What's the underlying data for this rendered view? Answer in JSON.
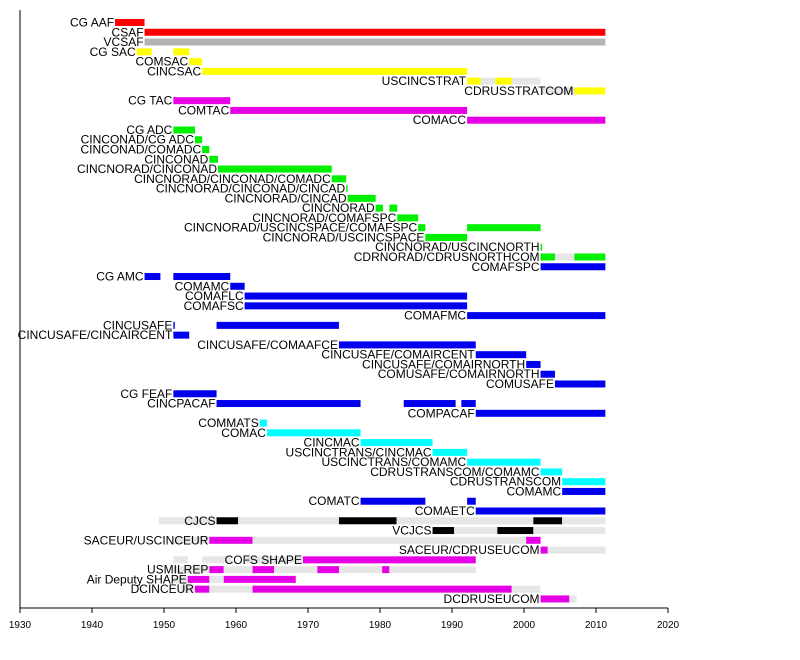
{
  "chart_data": {
    "type": "timeline",
    "title": "",
    "xlabel": "",
    "ylabel": "",
    "xlim": [
      1930,
      2020
    ],
    "x_ticks": [
      "1930",
      "1940",
      "1950",
      "1960",
      "1970",
      "1980",
      "1990",
      "2000",
      "2010",
      "2020"
    ],
    "colors": {
      "red": "#ff0000",
      "gray": "#b4b4b4",
      "yellow": "#ffff00",
      "magenta": "#e600e6",
      "green": "#00f000",
      "blue": "#0000ee",
      "cyan": "#00ffff",
      "black": "#000000",
      "light": "#e6e6e6"
    },
    "rows": [
      {
        "label": "CG AAF",
        "segments": [
          {
            "start": 1943.2,
            "end": 1947.3,
            "color": "red"
          }
        ]
      },
      {
        "label": "CSAF",
        "segments": [
          {
            "start": 1947.3,
            "end": 2011.3,
            "color": "red"
          }
        ]
      },
      {
        "label": "VCSAF",
        "segments": [
          {
            "start": 1947.3,
            "end": 2011.3,
            "color": "gray"
          }
        ]
      },
      {
        "label": "CG SAC",
        "segments": [
          {
            "start": 1946.2,
            "end": 1948.3,
            "color": "yellow"
          },
          {
            "start": 1951.3,
            "end": 1953.5,
            "color": "yellow"
          }
        ]
      },
      {
        "label": "COMSAC",
        "segments": [
          {
            "start": 1953.5,
            "end": 1955.3,
            "color": "yellow"
          }
        ]
      },
      {
        "label": "CINCSAC",
        "segments": [
          {
            "start": 1955.3,
            "end": 1992.1,
            "color": "yellow"
          }
        ]
      },
      {
        "label": "USCINCSTRAT",
        "segments": [
          {
            "start": 1992.1,
            "end": 1994.0,
            "color": "yellow"
          },
          {
            "start": 1994.0,
            "end": 1996.0,
            "color": "light"
          },
          {
            "start": 1996.0,
            "end": 1998.3,
            "color": "yellow"
          },
          {
            "start": 1998.3,
            "end": 2002.3,
            "color": "light"
          }
        ]
      },
      {
        "label": "CDRUSSTRATCOM",
        "segments": [
          {
            "start": 2002.3,
            "end": 2007.0,
            "color": "light"
          },
          {
            "start": 2007.0,
            "end": 2011.3,
            "color": "yellow"
          }
        ]
      },
      {
        "label": "CG TAC",
        "segments": [
          {
            "start": 1951.3,
            "end": 1959.2,
            "color": "magenta"
          }
        ]
      },
      {
        "label": "COMTAC",
        "segments": [
          {
            "start": 1959.2,
            "end": 1992.1,
            "color": "magenta"
          }
        ]
      },
      {
        "label": "COMACC",
        "segments": [
          {
            "start": 1992.1,
            "end": 2011.3,
            "color": "magenta"
          }
        ]
      },
      {
        "label": "CG ADC",
        "segments": [
          {
            "start": 1951.3,
            "end": 1954.3,
            "color": "green"
          }
        ]
      },
      {
        "label": "CINCONAD/CG ADC",
        "segments": [
          {
            "start": 1954.3,
            "end": 1955.3,
            "color": "green"
          }
        ]
      },
      {
        "label": "CINCONAD/COMADC",
        "segments": [
          {
            "start": 1955.3,
            "end": 1956.3,
            "color": "green"
          }
        ]
      },
      {
        "label": "CINCONAD",
        "segments": [
          {
            "start": 1956.3,
            "end": 1957.5,
            "color": "green"
          }
        ]
      },
      {
        "label": "CINCNORAD/CINCONAD",
        "segments": [
          {
            "start": 1957.5,
            "end": 1973.3,
            "color": "green"
          }
        ]
      },
      {
        "label": "CINCNORAD/CINCONAD/COMADC",
        "segments": [
          {
            "start": 1973.3,
            "end": 1975.3,
            "color": "green"
          }
        ]
      },
      {
        "label": "CINCNORAD/CINCONAD/CINCAD",
        "segments": [
          {
            "start": 1975.3,
            "end": 1975.5,
            "color": "green"
          }
        ]
      },
      {
        "label": "CINCNORAD/CINCAD",
        "segments": [
          {
            "start": 1975.5,
            "end": 1979.4,
            "color": "green"
          }
        ]
      },
      {
        "label": "CINCNORAD",
        "segments": [
          {
            "start": 1979.4,
            "end": 1980.4,
            "color": "green"
          },
          {
            "start": 1981.3,
            "end": 1982.4,
            "color": "green"
          }
        ]
      },
      {
        "label": "CINCNORAD/COMAFSPC",
        "segments": [
          {
            "start": 1982.4,
            "end": 1985.3,
            "color": "green"
          }
        ]
      },
      {
        "label": "CINCNORAD/USCINCSPACE/COMAFSPC",
        "segments": [
          {
            "start": 1985.3,
            "end": 1986.3,
            "color": "green"
          },
          {
            "start": 1992.1,
            "end": 2002.3,
            "color": "green"
          }
        ]
      },
      {
        "label": "CINCNORAD/USCINCSPACE",
        "segments": [
          {
            "start": 1986.3,
            "end": 1992.1,
            "color": "green"
          }
        ]
      },
      {
        "label": "CINCNORAD/USCINCNORTH",
        "segments": [
          {
            "start": 2002.3,
            "end": 2002.5,
            "color": "green"
          }
        ]
      },
      {
        "label": "CDRNORAD/CDRUSNORTHCOM",
        "segments": [
          {
            "start": 2002.3,
            "end": 2004.3,
            "color": "green"
          },
          {
            "start": 2004.3,
            "end": 2007.0,
            "color": "light"
          },
          {
            "start": 2007.0,
            "end": 2011.3,
            "color": "green"
          }
        ]
      },
      {
        "label": "COMAFSPC",
        "segments": [
          {
            "start": 2002.3,
            "end": 2011.3,
            "color": "blue"
          }
        ]
      },
      {
        "label": "CG AMC",
        "segments": [
          {
            "start": 1947.3,
            "end": 1949.5,
            "color": "blue"
          },
          {
            "start": 1951.3,
            "end": 1959.2,
            "color": "blue"
          }
        ]
      },
      {
        "label": "COMAMC",
        "segments": [
          {
            "start": 1959.2,
            "end": 1961.2,
            "color": "blue"
          }
        ]
      },
      {
        "label": "COMAFLC",
        "segments": [
          {
            "start": 1961.2,
            "end": 1992.1,
            "color": "blue"
          }
        ]
      },
      {
        "label": "COMAFSC",
        "segments": [
          {
            "start": 1961.2,
            "end": 1992.1,
            "color": "blue"
          }
        ]
      },
      {
        "label": "COMAFMC",
        "segments": [
          {
            "start": 1992.1,
            "end": 2011.3,
            "color": "blue"
          }
        ]
      },
      {
        "label": "CINCUSAFE",
        "segments": [
          {
            "start": 1951.3,
            "end": 1951.5,
            "color": "blue"
          },
          {
            "start": 1957.3,
            "end": 1974.3,
            "color": "blue"
          }
        ]
      },
      {
        "label": "CINCUSAFE/CINCAIRCENT",
        "segments": [
          {
            "start": 1951.3,
            "end": 1953.5,
            "color": "blue"
          }
        ]
      },
      {
        "label": "CINCUSAFE/COMAAFCE",
        "segments": [
          {
            "start": 1974.3,
            "end": 1993.3,
            "color": "blue"
          }
        ]
      },
      {
        "label": "CINCUSAFE/COMAIRCENT",
        "segments": [
          {
            "start": 1993.3,
            "end": 2000.3,
            "color": "blue"
          }
        ]
      },
      {
        "label": "CINCUSAFE/COMAIRNORTH",
        "segments": [
          {
            "start": 2000.3,
            "end": 2002.3,
            "color": "blue"
          }
        ]
      },
      {
        "label": "COMUSAFE/COMAIRNORTH",
        "segments": [
          {
            "start": 2002.3,
            "end": 2004.3,
            "color": "blue"
          }
        ]
      },
      {
        "label": "COMUSAFE",
        "segments": [
          {
            "start": 2004.3,
            "end": 2011.3,
            "color": "blue"
          }
        ]
      },
      {
        "label": "CG FEAF",
        "segments": [
          {
            "start": 1951.3,
            "end": 1957.3,
            "color": "blue"
          }
        ]
      },
      {
        "label": "CINCPACAF",
        "segments": [
          {
            "start": 1957.3,
            "end": 1977.3,
            "color": "blue"
          },
          {
            "start": 1983.3,
            "end": 1990.5,
            "color": "blue"
          },
          {
            "start": 1991.3,
            "end": 1993.3,
            "color": "blue"
          }
        ]
      },
      {
        "label": "COMPACAF",
        "segments": [
          {
            "start": 1993.3,
            "end": 2011.3,
            "color": "blue"
          }
        ]
      },
      {
        "label": "COMMATS",
        "segments": [
          {
            "start": 1963.3,
            "end": 1964.3,
            "color": "cyan"
          }
        ]
      },
      {
        "label": "COMAC",
        "segments": [
          {
            "start": 1964.3,
            "end": 1977.3,
            "color": "cyan"
          }
        ]
      },
      {
        "label": "CINCMAC",
        "segments": [
          {
            "start": 1977.3,
            "end": 1987.3,
            "color": "cyan"
          }
        ]
      },
      {
        "label": "USCINCTRANS/CINCMAC",
        "segments": [
          {
            "start": 1987.3,
            "end": 1992.1,
            "color": "cyan"
          }
        ]
      },
      {
        "label": "USCINCTRANS/COMAMC",
        "segments": [
          {
            "start": 1992.1,
            "end": 2002.3,
            "color": "cyan"
          }
        ]
      },
      {
        "label": "CDRUSTRANSCOM/COMAMC",
        "segments": [
          {
            "start": 2002.3,
            "end": 2005.3,
            "color": "cyan"
          }
        ]
      },
      {
        "label": "CDRUSTRANSCOM",
        "segments": [
          {
            "start": 2005.3,
            "end": 2011.3,
            "color": "cyan"
          }
        ]
      },
      {
        "label": "COMAMC",
        "segments": [
          {
            "start": 2005.3,
            "end": 2011.3,
            "color": "blue"
          }
        ]
      },
      {
        "label": "COMATC",
        "segments": [
          {
            "start": 1977.3,
            "end": 1986.3,
            "color": "blue"
          },
          {
            "start": 1992.1,
            "end": 1993.3,
            "color": "blue"
          }
        ]
      },
      {
        "label": "COMAETC",
        "segments": [
          {
            "start": 1993.3,
            "end": 2011.3,
            "color": "blue"
          }
        ]
      },
      {
        "label": "CJCS",
        "segments": [
          {
            "start": 1949.3,
            "end": 1957.3,
            "color": "light"
          },
          {
            "start": 1957.3,
            "end": 1960.3,
            "color": "black"
          },
          {
            "start": 1960.3,
            "end": 1974.3,
            "color": "light"
          },
          {
            "start": 1974.3,
            "end": 1982.3,
            "color": "black"
          },
          {
            "start": 1982.3,
            "end": 2001.3,
            "color": "light"
          },
          {
            "start": 2001.3,
            "end": 2005.3,
            "color": "black"
          },
          {
            "start": 2005.3,
            "end": 2011.3,
            "color": "light"
          }
        ]
      },
      {
        "label": "VCJCS",
        "segments": [
          {
            "start": 1987.3,
            "end": 1990.3,
            "color": "black"
          },
          {
            "start": 1990.3,
            "end": 1996.3,
            "color": "light"
          },
          {
            "start": 1996.3,
            "end": 2001.3,
            "color": "black"
          },
          {
            "start": 2001.3,
            "end": 2011.3,
            "color": "light"
          }
        ]
      },
      {
        "label": "SACEUR/USCINCEUR",
        "segments": [
          {
            "start": 1951.3,
            "end": 1956.3,
            "color": "light"
          },
          {
            "start": 1956.3,
            "end": 1962.3,
            "color": "magenta"
          },
          {
            "start": 1962.3,
            "end": 2000.3,
            "color": "light"
          },
          {
            "start": 2000.3,
            "end": 2002.3,
            "color": "magenta"
          }
        ]
      },
      {
        "label": "SACEUR/CDRUSEUCOM",
        "segments": [
          {
            "start": 2002.3,
            "end": 2003.3,
            "color": "magenta"
          },
          {
            "start": 2003.3,
            "end": 2011.3,
            "color": "light"
          }
        ]
      },
      {
        "label": "COFS SHAPE",
        "segments": [
          {
            "start": 1951.3,
            "end": 1953.3,
            "color": "light"
          },
          {
            "start": 1955.3,
            "end": 1959.3,
            "color": "light"
          },
          {
            "start": 1961.3,
            "end": 1969.3,
            "color": "light"
          },
          {
            "start": 1969.3,
            "end": 1993.3,
            "color": "magenta"
          }
        ]
      },
      {
        "label": "USMILREP",
        "segments": [
          {
            "start": 1951.3,
            "end": 1956.3,
            "color": "light"
          },
          {
            "start": 1956.3,
            "end": 1958.3,
            "color": "magenta"
          },
          {
            "start": 1958.3,
            "end": 1962.3,
            "color": "light"
          },
          {
            "start": 1962.3,
            "end": 1965.3,
            "color": "magenta"
          },
          {
            "start": 1965.3,
            "end": 1971.3,
            "color": "light"
          },
          {
            "start": 1971.3,
            "end": 1974.3,
            "color": "magenta"
          },
          {
            "start": 1974.3,
            "end": 1980.3,
            "color": "light"
          },
          {
            "start": 1980.3,
            "end": 1981.3,
            "color": "magenta"
          },
          {
            "start": 1981.3,
            "end": 1993.3,
            "color": "light"
          }
        ]
      },
      {
        "label": "Air Deputy SHAPE",
        "segments": [
          {
            "start": 1951.3,
            "end": 1953.3,
            "color": "light"
          },
          {
            "start": 1953.3,
            "end": 1956.3,
            "color": "magenta"
          },
          {
            "start": 1956.3,
            "end": 1958.3,
            "color": "light"
          },
          {
            "start": 1958.3,
            "end": 1968.3,
            "color": "magenta"
          }
        ]
      },
      {
        "label": "DCINCEUR",
        "segments": [
          {
            "start": 1952.3,
            "end": 1954.3,
            "color": "light"
          },
          {
            "start": 1954.3,
            "end": 1956.3,
            "color": "magenta"
          },
          {
            "start": 1956.3,
            "end": 1962.3,
            "color": "light"
          },
          {
            "start": 1962.3,
            "end": 1998.3,
            "color": "magenta"
          },
          {
            "start": 1998.3,
            "end": 2002.3,
            "color": "light"
          }
        ]
      },
      {
        "label": "DCDRUSEUCOM",
        "segments": [
          {
            "start": 2002.3,
            "end": 2006.3,
            "color": "magenta"
          },
          {
            "start": 2006.3,
            "end": 2007.3,
            "color": "light"
          }
        ]
      }
    ]
  }
}
